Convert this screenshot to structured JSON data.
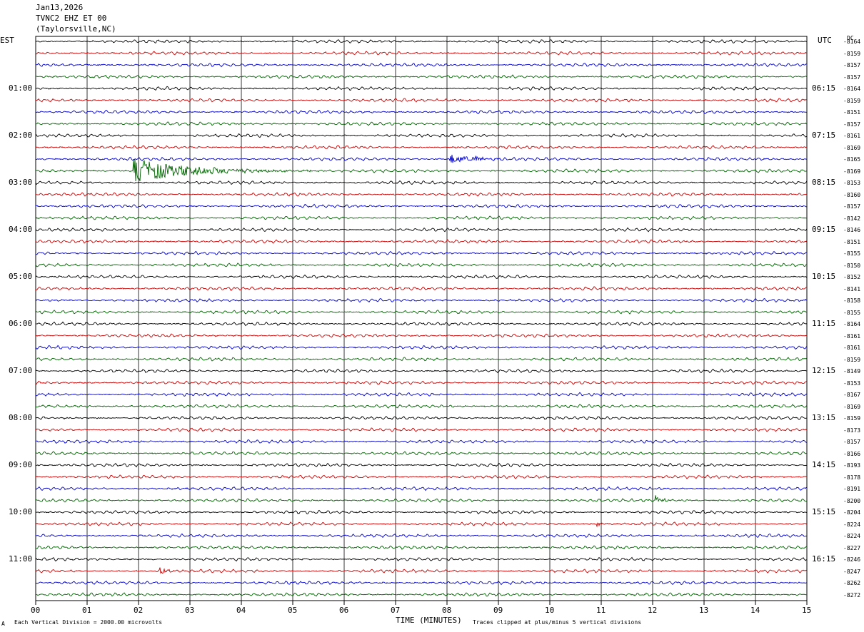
{
  "header": {
    "date": "Jan13,2026",
    "station": "TVNC2 EHZ ET 00",
    "location": "(Taylorsville,NC)"
  },
  "left_tz": "EST",
  "right_tz": "UTC",
  "dc_label": "DC",
  "footer": {
    "scale_note": "Each Vertical Division = 2000.00 microvolts",
    "xlabel": "TIME (MINUTES)",
    "clip_note": "Traces clipped at plus/minus 5 vertical divisions",
    "corner_mark": "A"
  },
  "colors": {
    "trace_cycle": [
      "#000000",
      "#cc0000",
      "#0000cc",
      "#006400"
    ],
    "grid": "#000000"
  },
  "chart_data": {
    "type": "line",
    "x_ticks": [
      "00",
      "01",
      "02",
      "03",
      "04",
      "05",
      "06",
      "07",
      "08",
      "09",
      "10",
      "11",
      "12",
      "13",
      "14",
      "15"
    ],
    "xlim": [
      0,
      15
    ],
    "row_count": 48,
    "left_hour_labels": [
      "01:00",
      "02:00",
      "03:00",
      "04:00",
      "05:00",
      "06:00",
      "07:00",
      "08:00",
      "09:00",
      "10:00",
      "11:00"
    ],
    "right_hour_labels": [
      "06:15",
      "07:15",
      "08:15",
      "09:15",
      "10:15",
      "11:15",
      "12:15",
      "13:15",
      "14:15",
      "15:15",
      "16:15"
    ],
    "dc_offsets": [
      "-8164",
      "-8159",
      "-8157",
      "-8157",
      "-8164",
      "-8159",
      "-8151",
      "-8157",
      "-8161",
      "-8169",
      "-8165",
      "-8169",
      "-8153",
      "-8160",
      "-8157",
      "-8142",
      "-8146",
      "-8151",
      "-8155",
      "-8150",
      "-8152",
      "-8141",
      "-8158",
      "-8155",
      "-8164",
      "-8161",
      "-8161",
      "-8159",
      "-8149",
      "-8153",
      "-8167",
      "-8169",
      "-8159",
      "-8173",
      "-8157",
      "-8166",
      "-8193",
      "-8178",
      "-8191",
      "-8200",
      "-8204",
      "-8224",
      "-8224",
      "-8227",
      "-8246",
      "-8247",
      "-8262",
      "-8272"
    ],
    "events": [
      {
        "row": 11,
        "start_min": 1.9,
        "peak": 16,
        "duration_min": 3.8
      },
      {
        "row": 10,
        "start_min": 8.05,
        "peak": 6,
        "duration_min": 1.2
      },
      {
        "row": 10,
        "start_min": 8.55,
        "peak": 7,
        "duration_min": 0.3
      },
      {
        "row": 39,
        "start_min": 12.05,
        "peak": 5,
        "duration_min": 0.35
      },
      {
        "row": 45,
        "start_min": 2.4,
        "peak": 4,
        "duration_min": 0.4
      },
      {
        "row": 41,
        "start_min": 10.9,
        "peak": 3,
        "duration_min": 0.3
      }
    ]
  }
}
